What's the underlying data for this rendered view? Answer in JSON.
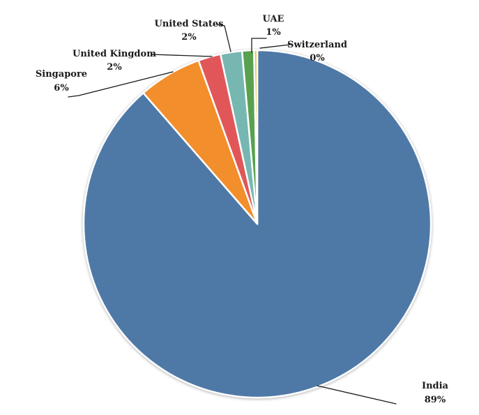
{
  "chart_data": {
    "type": "pie",
    "title": "",
    "legend": "none",
    "background": "#FFFFFF",
    "order": "clockwise-from-top",
    "label_style": "outside-callouts-with-leader-lines",
    "slices": [
      {
        "label": "India",
        "value_pct": 89,
        "value_label": "89%",
        "color": "#4E79A7",
        "render_pct": 88.6
      },
      {
        "label": "Singapore",
        "value_pct": 6,
        "value_label": "6%",
        "color": "#F28E2B",
        "render_pct": 5.9
      },
      {
        "label": "United Kingdom",
        "value_pct": 2,
        "value_label": "2%",
        "color": "#E15759",
        "render_pct": 2.1
      },
      {
        "label": "United States",
        "value_pct": 2,
        "value_label": "2%",
        "color": "#76B7B2",
        "render_pct": 2.0
      },
      {
        "label": "UAE",
        "value_pct": 1,
        "value_label": "1%",
        "color": "#59A14F",
        "render_pct": 1.1
      },
      {
        "label": "Switzerland",
        "value_pct": 0,
        "value_label": "0%",
        "color": "#EDC948",
        "render_pct": 0.3
      }
    ],
    "colors": {
      "slice_border": "#FFFFFF",
      "leader_line": "#1A1A1A",
      "label_text": "#1A1A1A"
    }
  }
}
